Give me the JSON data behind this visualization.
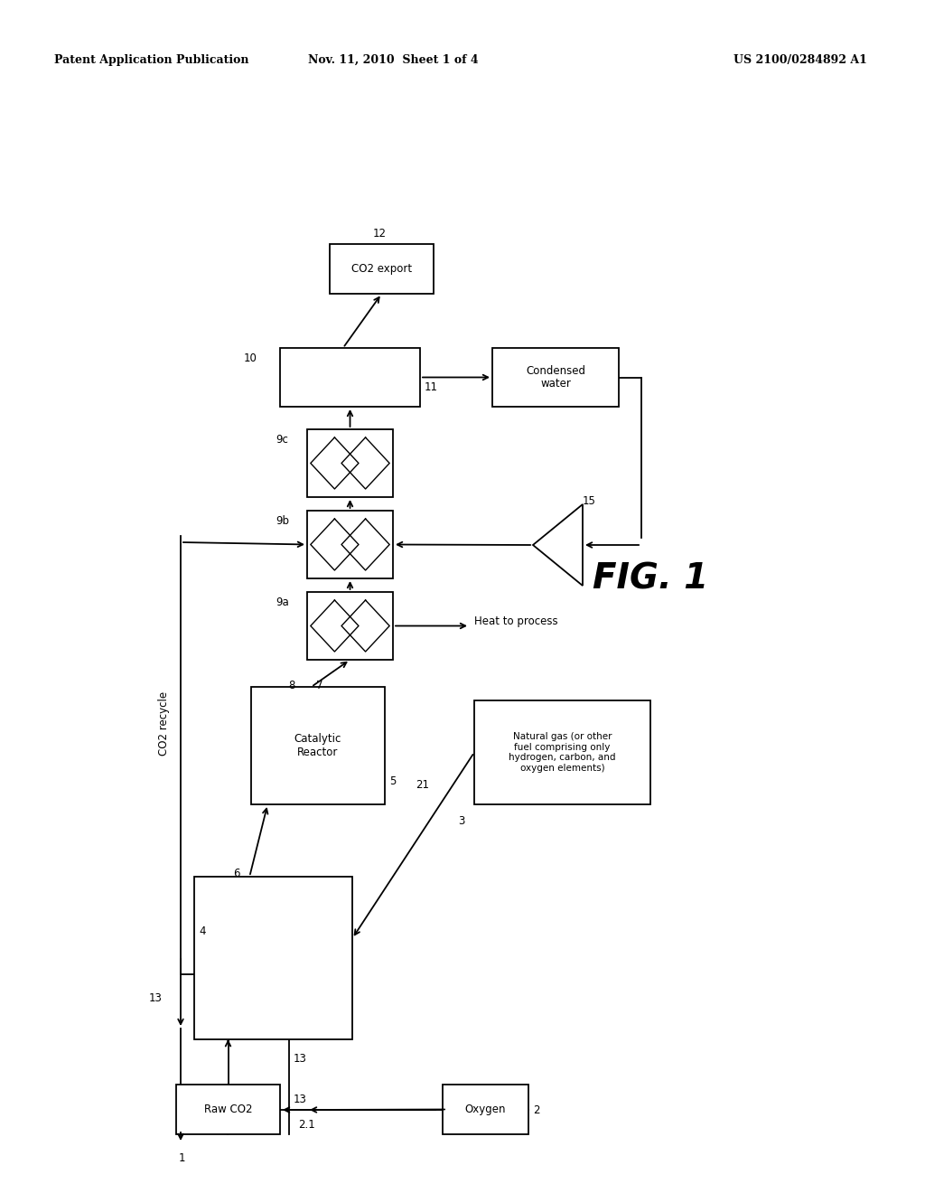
{
  "background_color": "#ffffff",
  "header_left": "Patent Application Publication",
  "header_center": "Nov. 11, 2010  Sheet 1 of 4",
  "header_right": "US 2100/0284892 A1",
  "fig_label": "FIG. 1"
}
